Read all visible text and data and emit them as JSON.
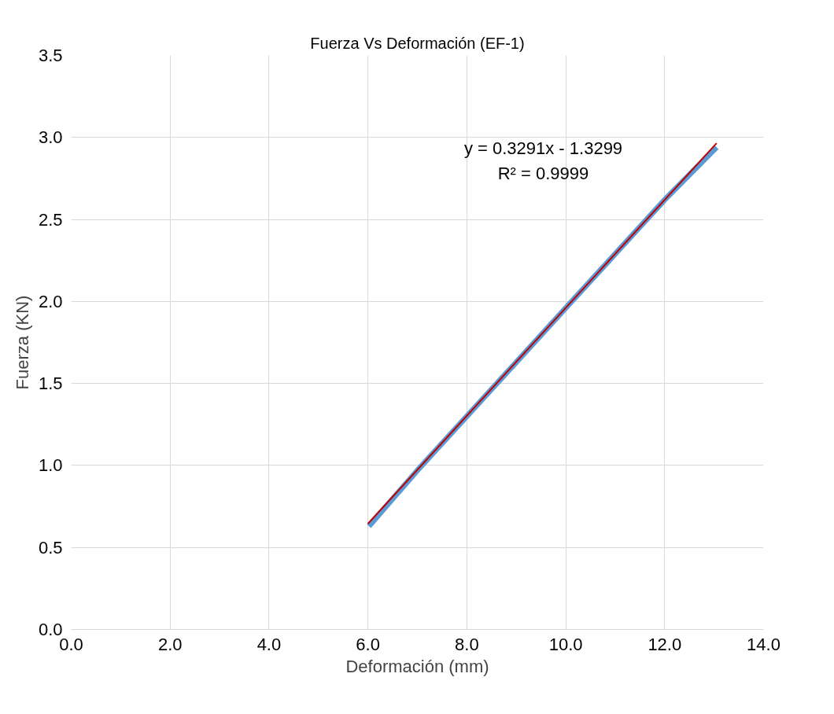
{
  "chart_data": {
    "type": "line",
    "title": "Fuerza Vs Deformación (EF-1)",
    "xlabel": "Deformación (mm)",
    "ylabel": "Fuerza (KN)",
    "xlim": [
      0,
      14
    ],
    "xticks": [
      {
        "value": 0,
        "label": "0.0"
      },
      {
        "value": 2,
        "label": "2.0"
      },
      {
        "value": 4,
        "label": "4.0"
      },
      {
        "value": 6,
        "label": "6.0"
      },
      {
        "value": 8,
        "label": "8.0"
      },
      {
        "value": 10,
        "label": "10.0"
      },
      {
        "value": 12,
        "label": "12.0"
      },
      {
        "value": 14,
        "label": "14.0"
      }
    ],
    "ylim": [
      0,
      3.5
    ],
    "yticks": [
      {
        "value": 0,
        "label": "0.0"
      },
      {
        "value": 0.5,
        "label": "0.5"
      },
      {
        "value": 1,
        "label": "1.0"
      },
      {
        "value": 1.5,
        "label": "1.5"
      },
      {
        "value": 2,
        "label": "2.0"
      },
      {
        "value": 2.5,
        "label": "2.5"
      },
      {
        "value": 3,
        "label": "3.0"
      },
      {
        "value": 3.5,
        "label": "3.5"
      }
    ],
    "grid": true,
    "line_style": "solid",
    "annotations": [
      "y = 0.3291x - 1.3299",
      "R² = 0.9999"
    ],
    "series": [
      {
        "color": "#5b9bd5",
        "x": [
          6.02,
          7.0,
          8.0,
          9.0,
          10.0,
          11.0,
          12.0,
          13.05
        ],
        "values": [
          0.63,
          0.97,
          1.3,
          1.63,
          1.96,
          2.29,
          2.62,
          2.94
        ]
      },
      {
        "color": "#c00000",
        "x": [
          6.0,
          13.05
        ],
        "values": [
          0.645,
          2.965
        ]
      }
    ]
  }
}
